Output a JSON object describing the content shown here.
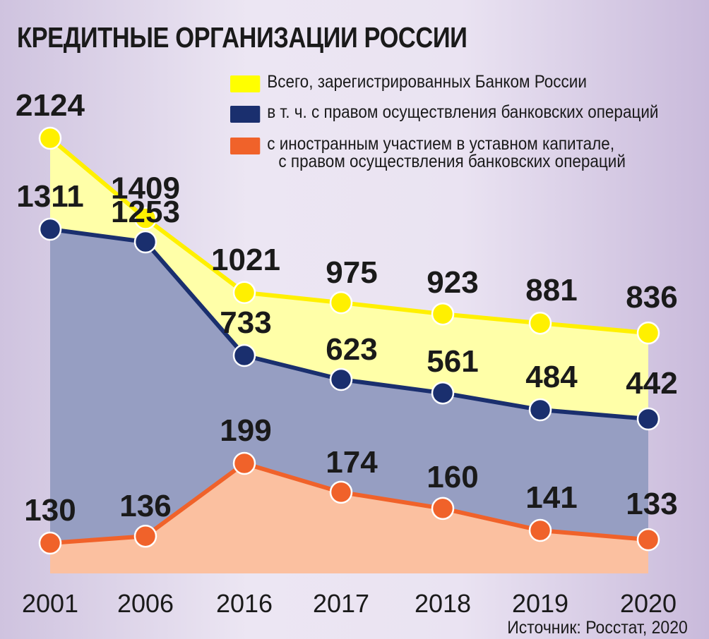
{
  "title": "КРЕДИТНЫЕ ОРГАНИЗАЦИИ РОССИИ",
  "source": "Источник: Росстат, 2020",
  "legend": [
    {
      "label": "Всего, зарегистрированных  Банком России",
      "color": "#ffff00"
    },
    {
      "label": "в т. ч. с правом осуществления банковских операций",
      "color": "#1a2f6e"
    },
    {
      "label": "с иностранным участием в уставном капитале,",
      "label2": "с правом осуществления банковских операций",
      "color": "#f0622a"
    }
  ],
  "chart_data": {
    "type": "area",
    "categories": [
      "2001",
      "2006",
      "2016",
      "2017",
      "2018",
      "2019",
      "2020"
    ],
    "series": [
      {
        "name": "Всего, зарегистрированных  Банком России",
        "values": [
          2124,
          1409,
          1021,
          975,
          923,
          881,
          836
        ],
        "line": "#fff000",
        "fill": "#ffffa8"
      },
      {
        "name": "в т. ч. с правом осуществления банковских операций",
        "values": [
          1311,
          1253,
          733,
          623,
          561,
          484,
          442
        ],
        "line": "#1a2f6e",
        "fill": "#969ec2"
      },
      {
        "name": "с иностранным участием в уставном капитале, с правом осуществления банковских операций",
        "values": [
          130,
          136,
          199,
          174,
          160,
          141,
          133
        ],
        "line": "#f0622a",
        "fill": "#fbc0a0"
      }
    ],
    "grid": false,
    "legend_position": "top-right"
  }
}
